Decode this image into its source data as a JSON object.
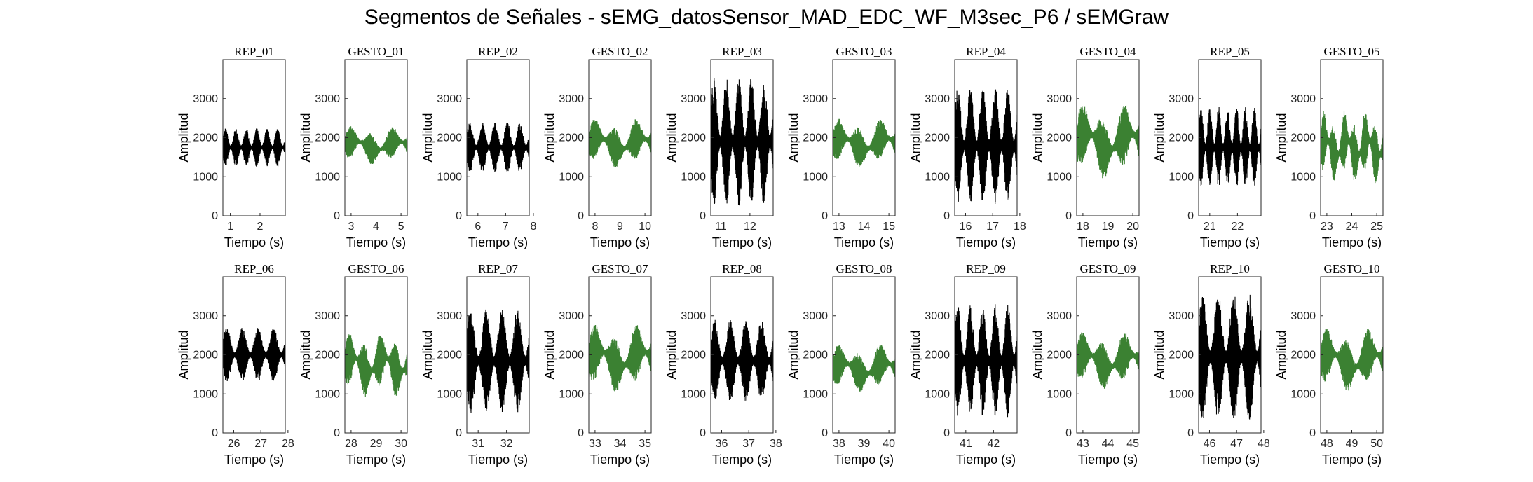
{
  "figure": {
    "title": "Segmentos de Señales - sEMG_datosSensor_MAD_EDC_WF_M3sec_P6 / sEMGraw"
  },
  "colors": {
    "rep": "#000000",
    "gesto": "#3b8132",
    "axes": "#262626"
  },
  "chart_data": [
    {
      "type": "line",
      "title": "REP_01",
      "xlabel": "Tiempo (s)",
      "ylabel": "Amplitud",
      "kind": "rep",
      "xlim": [
        0.75,
        2.85
      ],
      "xticks": [
        1,
        2
      ],
      "ylim": [
        0,
        4000
      ],
      "yticks": [
        0,
        1000,
        2000,
        3000
      ],
      "band": [
        1250,
        2250
      ],
      "cycles": 6
    },
    {
      "type": "line",
      "title": "GESTO_01",
      "xlabel": "Tiempo (s)",
      "ylabel": "Amplitud",
      "kind": "gesto",
      "xlim": [
        2.75,
        5.25
      ],
      "xticks": [
        3,
        4,
        5
      ],
      "ylim": [
        0,
        4000
      ],
      "yticks": [
        0,
        1000,
        2000,
        3000
      ],
      "band": [
        1300,
        2300
      ],
      "cycles": 3
    },
    {
      "type": "line",
      "title": "REP_02",
      "xlabel": "Tiempo (s)",
      "ylabel": "Amplitud",
      "kind": "rep",
      "xlim": [
        5.6,
        7.85
      ],
      "xticks": [
        6,
        7,
        8
      ],
      "ylim": [
        0,
        4000
      ],
      "yticks": [
        0,
        1000,
        2000,
        3000
      ],
      "band": [
        1100,
        2400
      ],
      "cycles": 5
    },
    {
      "type": "line",
      "title": "GESTO_02",
      "xlabel": "Tiempo (s)",
      "ylabel": "Amplitud",
      "kind": "gesto",
      "xlim": [
        7.75,
        10.25
      ],
      "xticks": [
        8,
        9,
        10
      ],
      "ylim": [
        0,
        4000
      ],
      "yticks": [
        0,
        1000,
        2000,
        3000
      ],
      "band": [
        1200,
        2500
      ],
      "cycles": 3
    },
    {
      "type": "line",
      "title": "REP_03",
      "xlabel": "Tiempo (s)",
      "ylabel": "Amplitud",
      "kind": "rep",
      "xlim": [
        10.65,
        12.8
      ],
      "xticks": [
        11,
        12
      ],
      "ylim": [
        0,
        4000
      ],
      "yticks": [
        0,
        1000,
        2000,
        3000
      ],
      "band": [
        250,
        3550
      ],
      "cycles": 5
    },
    {
      "type": "line",
      "title": "GESTO_03",
      "xlabel": "Tiempo (s)",
      "ylabel": "Amplitud",
      "kind": "gesto",
      "xlim": [
        12.75,
        15.25
      ],
      "xticks": [
        13,
        14,
        15
      ],
      "ylim": [
        0,
        4000
      ],
      "yticks": [
        0,
        1000,
        2000,
        3000
      ],
      "band": [
        1200,
        2500
      ],
      "cycles": 3
    },
    {
      "type": "line",
      "title": "REP_04",
      "xlabel": "Tiempo (s)",
      "ylabel": "Amplitud",
      "kind": "rep",
      "xlim": [
        15.6,
        17.9
      ],
      "xticks": [
        16,
        17,
        18
      ],
      "ylim": [
        0,
        4000
      ],
      "yticks": [
        0,
        1000,
        2000,
        3000
      ],
      "band": [
        300,
        3300
      ],
      "cycles": 5
    },
    {
      "type": "line",
      "title": "GESTO_04",
      "xlabel": "Tiempo (s)",
      "ylabel": "Amplitud",
      "kind": "gesto",
      "xlim": [
        17.75,
        20.25
      ],
      "xticks": [
        18,
        19,
        20
      ],
      "ylim": [
        0,
        4000
      ],
      "yticks": [
        0,
        1000,
        2000,
        3000
      ],
      "band": [
        900,
        2900
      ],
      "cycles": 3
    },
    {
      "type": "line",
      "title": "REP_05",
      "xlabel": "Tiempo (s)",
      "ylabel": "Amplitud",
      "kind": "rep",
      "xlim": [
        20.6,
        22.85
      ],
      "xticks": [
        21,
        22
      ],
      "ylim": [
        0,
        4000
      ],
      "yticks": [
        0,
        1000,
        2000,
        3000
      ],
      "band": [
        700,
        2800
      ],
      "cycles": 7
    },
    {
      "type": "line",
      "title": "GESTO_05",
      "xlabel": "Tiempo (s)",
      "ylabel": "Amplitud",
      "kind": "gesto",
      "xlim": [
        22.75,
        25.25
      ],
      "xticks": [
        23,
        24,
        25
      ],
      "ylim": [
        0,
        4000
      ],
      "yticks": [
        0,
        1000,
        2000,
        3000
      ],
      "band": [
        800,
        2700
      ],
      "cycles": 6
    },
    {
      "type": "line",
      "title": "REP_06",
      "xlabel": "Tiempo (s)",
      "ylabel": "Amplitud",
      "kind": "rep",
      "xlim": [
        25.6,
        27.9
      ],
      "xticks": [
        26,
        27,
        28
      ],
      "ylim": [
        0,
        4000
      ],
      "yticks": [
        0,
        1000,
        2000,
        3000
      ],
      "band": [
        1300,
        2700
      ],
      "cycles": 4
    },
    {
      "type": "line",
      "title": "GESTO_06",
      "xlabel": "Tiempo (s)",
      "ylabel": "Amplitud",
      "kind": "gesto",
      "xlim": [
        27.75,
        30.25
      ],
      "xticks": [
        28,
        29,
        30
      ],
      "ylim": [
        0,
        4000
      ],
      "yticks": [
        0,
        1000,
        2000,
        3000
      ],
      "band": [
        900,
        2600
      ],
      "cycles": 4
    },
    {
      "type": "line",
      "title": "REP_07",
      "xlabel": "Tiempo (s)",
      "ylabel": "Amplitud",
      "kind": "rep",
      "xlim": [
        30.6,
        32.8
      ],
      "xticks": [
        31,
        32
      ],
      "ylim": [
        0,
        4000
      ],
      "yticks": [
        0,
        1000,
        2000,
        3000
      ],
      "band": [
        500,
        3200
      ],
      "cycles": 4
    },
    {
      "type": "line",
      "title": "GESTO_07",
      "xlabel": "Tiempo (s)",
      "ylabel": "Amplitud",
      "kind": "gesto",
      "xlim": [
        32.75,
        35.25
      ],
      "xticks": [
        33,
        34,
        35
      ],
      "ylim": [
        0,
        4000
      ],
      "yticks": [
        0,
        1000,
        2000,
        3000
      ],
      "band": [
        1000,
        2800
      ],
      "cycles": 3
    },
    {
      "type": "line",
      "title": "REP_08",
      "xlabel": "Tiempo (s)",
      "ylabel": "Amplitud",
      "kind": "rep",
      "xlim": [
        35.6,
        37.9
      ],
      "xticks": [
        36,
        37,
        38
      ],
      "ylim": [
        0,
        4000
      ],
      "yticks": [
        0,
        1000,
        2000,
        3000
      ],
      "band": [
        800,
        2900
      ],
      "cycles": 4
    },
    {
      "type": "line",
      "title": "GESTO_08",
      "xlabel": "Tiempo (s)",
      "ylabel": "Amplitud",
      "kind": "gesto",
      "xlim": [
        37.75,
        40.25
      ],
      "xticks": [
        38,
        39,
        40
      ],
      "ylim": [
        0,
        4000
      ],
      "yticks": [
        0,
        1000,
        2000,
        3000
      ],
      "band": [
        1000,
        2300
      ],
      "cycles": 3
    },
    {
      "type": "line",
      "title": "REP_09",
      "xlabel": "Tiempo (s)",
      "ylabel": "Amplitud",
      "kind": "rep",
      "xlim": [
        40.6,
        42.85
      ],
      "xticks": [
        41,
        42
      ],
      "ylim": [
        0,
        4000
      ],
      "yticks": [
        0,
        1000,
        2000,
        3000
      ],
      "band": [
        400,
        3300
      ],
      "cycles": 5
    },
    {
      "type": "line",
      "title": "GESTO_09",
      "xlabel": "Tiempo (s)",
      "ylabel": "Amplitud",
      "kind": "gesto",
      "xlim": [
        42.75,
        45.25
      ],
      "xticks": [
        43,
        44,
        45
      ],
      "ylim": [
        0,
        4000
      ],
      "yticks": [
        0,
        1000,
        2000,
        3000
      ],
      "band": [
        1100,
        2600
      ],
      "cycles": 3
    },
    {
      "type": "line",
      "title": "REP_10",
      "xlabel": "Tiempo (s)",
      "ylabel": "Amplitud",
      "kind": "rep",
      "xlim": [
        45.6,
        47.9
      ],
      "xticks": [
        46,
        47,
        48
      ],
      "ylim": [
        0,
        4000
      ],
      "yticks": [
        0,
        1000,
        2000,
        3000
      ],
      "band": [
        300,
        3600
      ],
      "cycles": 4
    },
    {
      "type": "line",
      "title": "GESTO_10",
      "xlabel": "Tiempo (s)",
      "ylabel": "Amplitud",
      "kind": "gesto",
      "xlim": [
        47.75,
        50.25
      ],
      "xticks": [
        48,
        49,
        50
      ],
      "ylim": [
        0,
        4000
      ],
      "yticks": [
        0,
        1000,
        2000,
        3000
      ],
      "band": [
        1000,
        2700
      ],
      "cycles": 3
    }
  ]
}
